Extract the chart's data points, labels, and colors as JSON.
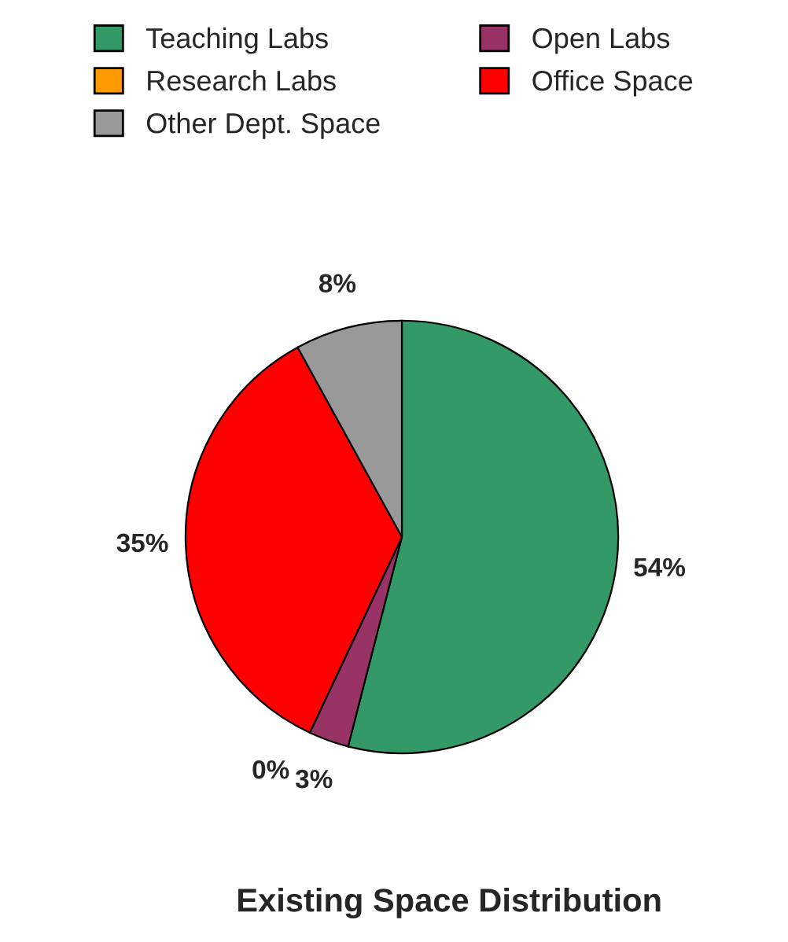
{
  "chart_data": {
    "type": "pie",
    "title": "Existing Space Distribution",
    "categories": [
      "Teaching Labs",
      "Open Labs",
      "Research Labs",
      "Office Space",
      "Other Dept. Space"
    ],
    "values": [
      54,
      3,
      0,
      35,
      8
    ],
    "colors": [
      "#339966",
      "#993366",
      "#ff9900",
      "#ff0000",
      "#999999"
    ],
    "value_labels": [
      "54%",
      "3%",
      "0%",
      "35%",
      "8%"
    ],
    "legend": "top"
  }
}
